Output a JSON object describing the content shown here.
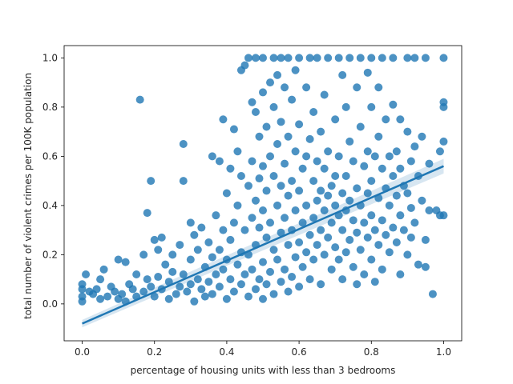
{
  "chart_data": {
    "type": "scatter",
    "xlabel": "percentage of housing units with less than 3 bedrooms",
    "ylabel": "total number of violent crimes per 100K population",
    "xlim": [
      -0.05,
      1.05
    ],
    "ylim": [
      -0.15,
      1.05
    ],
    "x_ticks": [
      0.0,
      0.2,
      0.4,
      0.6,
      0.8,
      1.0
    ],
    "x_tick_labels": [
      "0.0",
      "0.2",
      "0.4",
      "0.6",
      "0.8",
      "1.0"
    ],
    "y_ticks": [
      0.0,
      0.2,
      0.4,
      0.6,
      0.8,
      1.0
    ],
    "y_tick_labels": [
      "0.0",
      "0.2",
      "0.4",
      "0.6",
      "0.8",
      "1.0"
    ],
    "grid": false,
    "point_color": "#1f77b4",
    "regression": {
      "x": [
        0.0,
        1.0
      ],
      "y": [
        -0.08,
        0.56
      ],
      "ci_halfwidth": [
        0.015,
        0.03
      ]
    },
    "points": [
      [
        0.0,
        0.08
      ],
      [
        0.0,
        0.06
      ],
      [
        0.0,
        0.03
      ],
      [
        0.0,
        0.01
      ],
      [
        0.01,
        0.12
      ],
      [
        0.02,
        0.05
      ],
      [
        0.03,
        0.04
      ],
      [
        0.04,
        0.06
      ],
      [
        0.05,
        0.1
      ],
      [
        0.05,
        0.02
      ],
      [
        0.06,
        0.14
      ],
      [
        0.07,
        0.03
      ],
      [
        0.08,
        0.07
      ],
      [
        0.09,
        0.05
      ],
      [
        0.1,
        0.02
      ],
      [
        0.1,
        0.18
      ],
      [
        0.11,
        0.04
      ],
      [
        0.12,
        0.01
      ],
      [
        0.12,
        0.17
      ],
      [
        0.13,
        0.08
      ],
      [
        0.14,
        0.06
      ],
      [
        0.15,
        0.03
      ],
      [
        0.15,
        0.12
      ],
      [
        0.16,
        0.83
      ],
      [
        0.17,
        0.2
      ],
      [
        0.17,
        0.05
      ],
      [
        0.18,
        0.37
      ],
      [
        0.18,
        0.1
      ],
      [
        0.19,
        0.5
      ],
      [
        0.19,
        0.07
      ],
      [
        0.2,
        0.26
      ],
      [
        0.2,
        0.03
      ],
      [
        0.21,
        0.22
      ],
      [
        0.21,
        0.11
      ],
      [
        0.22,
        0.06
      ],
      [
        0.22,
        0.27
      ],
      [
        0.23,
        0.16
      ],
      [
        0.24,
        0.02
      ],
      [
        0.24,
        0.09
      ],
      [
        0.25,
        0.2
      ],
      [
        0.25,
        0.13
      ],
      [
        0.26,
        0.04
      ],
      [
        0.27,
        0.24
      ],
      [
        0.27,
        0.07
      ],
      [
        0.28,
        0.65
      ],
      [
        0.28,
        0.5
      ],
      [
        0.28,
        0.12
      ],
      [
        0.29,
        0.05
      ],
      [
        0.3,
        0.33
      ],
      [
        0.3,
        0.18
      ],
      [
        0.3,
        0.08
      ],
      [
        0.31,
        0.28
      ],
      [
        0.31,
        0.01
      ],
      [
        0.32,
        0.22
      ],
      [
        0.32,
        0.1
      ],
      [
        0.33,
        0.06
      ],
      [
        0.33,
        0.31
      ],
      [
        0.34,
        0.15
      ],
      [
        0.34,
        0.03
      ],
      [
        0.35,
        0.25
      ],
      [
        0.35,
        0.09
      ],
      [
        0.36,
        0.6
      ],
      [
        0.36,
        0.19
      ],
      [
        0.36,
        0.04
      ],
      [
        0.37,
        0.12
      ],
      [
        0.37,
        0.36
      ],
      [
        0.38,
        0.58
      ],
      [
        0.38,
        0.22
      ],
      [
        0.38,
        0.07
      ],
      [
        0.39,
        0.75
      ],
      [
        0.39,
        0.3
      ],
      [
        0.39,
        0.14
      ],
      [
        0.4,
        0.45
      ],
      [
        0.4,
        0.02
      ],
      [
        0.4,
        0.18
      ],
      [
        0.41,
        0.55
      ],
      [
        0.41,
        0.26
      ],
      [
        0.41,
        0.1
      ],
      [
        0.42,
        0.71
      ],
      [
        0.42,
        0.33
      ],
      [
        0.42,
        0.05
      ],
      [
        0.43,
        0.62
      ],
      [
        0.43,
        0.4
      ],
      [
        0.43,
        0.16
      ],
      [
        0.44,
        0.95
      ],
      [
        0.44,
        0.52
      ],
      [
        0.44,
        0.21
      ],
      [
        0.44,
        0.08
      ],
      [
        0.45,
        0.97
      ],
      [
        0.45,
        0.3
      ],
      [
        0.45,
        0.12
      ],
      [
        0.46,
        1.0
      ],
      [
        0.46,
        0.48
      ],
      [
        0.46,
        0.03
      ],
      [
        0.46,
        0.2
      ],
      [
        0.47,
        0.82
      ],
      [
        0.47,
        0.58
      ],
      [
        0.47,
        0.35
      ],
      [
        0.47,
        0.14
      ],
      [
        0.48,
        1.0
      ],
      [
        0.48,
        0.78
      ],
      [
        0.48,
        0.42
      ],
      [
        0.48,
        0.24
      ],
      [
        0.48,
        0.06
      ],
      [
        0.49,
        0.68
      ],
      [
        0.49,
        0.51
      ],
      [
        0.49,
        0.31
      ],
      [
        0.49,
        0.1
      ],
      [
        0.5,
        1.0
      ],
      [
        0.5,
        0.86
      ],
      [
        0.5,
        0.56
      ],
      [
        0.5,
        0.38
      ],
      [
        0.5,
        0.17
      ],
      [
        0.5,
        0.02
      ],
      [
        0.51,
        0.72
      ],
      [
        0.51,
        0.46
      ],
      [
        0.51,
        0.27
      ],
      [
        0.51,
        0.08
      ],
      [
        0.52,
        0.9
      ],
      [
        0.52,
        0.6
      ],
      [
        0.52,
        0.33
      ],
      [
        0.52,
        0.13
      ],
      [
        0.53,
        1.0
      ],
      [
        0.53,
        0.8
      ],
      [
        0.53,
        0.52
      ],
      [
        0.53,
        0.22
      ],
      [
        0.53,
        0.04
      ],
      [
        0.54,
        0.93
      ],
      [
        0.54,
        0.65
      ],
      [
        0.54,
        0.4
      ],
      [
        0.54,
        0.18
      ],
      [
        0.55,
        1.0
      ],
      [
        0.55,
        0.74
      ],
      [
        0.55,
        0.48
      ],
      [
        0.55,
        0.29
      ],
      [
        0.55,
        0.09
      ],
      [
        0.56,
        0.88
      ],
      [
        0.56,
        0.57
      ],
      [
        0.56,
        0.35
      ],
      [
        0.56,
        0.14
      ],
      [
        0.57,
        1.0
      ],
      [
        0.57,
        0.68
      ],
      [
        0.57,
        0.44
      ],
      [
        0.57,
        0.24
      ],
      [
        0.57,
        0.05
      ],
      [
        0.58,
        0.83
      ],
      [
        0.58,
        0.5
      ],
      [
        0.58,
        0.3
      ],
      [
        0.58,
        0.11
      ],
      [
        0.59,
        0.95
      ],
      [
        0.59,
        0.62
      ],
      [
        0.59,
        0.38
      ],
      [
        0.59,
        0.19
      ],
      [
        0.6,
        1.0
      ],
      [
        0.6,
        0.73
      ],
      [
        0.6,
        0.46
      ],
      [
        0.6,
        0.25
      ],
      [
        0.6,
        0.07
      ],
      [
        0.61,
        0.55
      ],
      [
        0.61,
        0.33
      ],
      [
        0.61,
        0.15
      ],
      [
        0.62,
        0.88
      ],
      [
        0.62,
        0.6
      ],
      [
        0.62,
        0.4
      ],
      [
        0.62,
        0.21
      ],
      [
        0.63,
        1.0
      ],
      [
        0.63,
        0.67
      ],
      [
        0.63,
        0.28
      ],
      [
        0.63,
        0.1
      ],
      [
        0.64,
        0.78
      ],
      [
        0.64,
        0.5
      ],
      [
        0.64,
        0.35
      ],
      [
        0.64,
        0.18
      ],
      [
        0.65,
        1.0
      ],
      [
        0.65,
        0.58
      ],
      [
        0.65,
        0.42
      ],
      [
        0.65,
        0.24
      ],
      [
        0.66,
        0.7
      ],
      [
        0.66,
        0.46
      ],
      [
        0.66,
        0.3
      ],
      [
        0.66,
        0.08
      ],
      [
        0.67,
        0.85
      ],
      [
        0.67,
        0.55
      ],
      [
        0.67,
        0.38
      ],
      [
        0.67,
        0.2
      ],
      [
        0.68,
        1.0
      ],
      [
        0.68,
        0.62
      ],
      [
        0.68,
        0.44
      ],
      [
        0.68,
        0.27
      ],
      [
        0.69,
        0.48
      ],
      [
        0.69,
        0.33
      ],
      [
        0.69,
        0.14
      ],
      [
        0.7,
        0.75
      ],
      [
        0.7,
        0.52
      ],
      [
        0.7,
        0.4
      ],
      [
        0.7,
        0.23
      ],
      [
        0.71,
        1.0
      ],
      [
        0.71,
        0.6
      ],
      [
        0.71,
        0.36
      ],
      [
        0.71,
        0.18
      ],
      [
        0.72,
        0.93
      ],
      [
        0.72,
        0.45
      ],
      [
        0.72,
        0.3
      ],
      [
        0.72,
        0.1
      ],
      [
        0.73,
        0.8
      ],
      [
        0.73,
        0.52
      ],
      [
        0.73,
        0.38
      ],
      [
        0.73,
        0.21
      ],
      [
        0.74,
        1.0
      ],
      [
        0.74,
        0.66
      ],
      [
        0.74,
        0.42
      ],
      [
        0.74,
        0.26
      ],
      [
        0.75,
        0.58
      ],
      [
        0.75,
        0.34
      ],
      [
        0.75,
        0.15
      ],
      [
        0.76,
        0.88
      ],
      [
        0.76,
        0.47
      ],
      [
        0.76,
        0.29
      ],
      [
        0.76,
        0.08
      ],
      [
        0.77,
        1.0
      ],
      [
        0.77,
        0.72
      ],
      [
        0.77,
        0.4
      ],
      [
        0.77,
        0.22
      ],
      [
        0.78,
        0.56
      ],
      [
        0.78,
        0.33
      ],
      [
        0.78,
        0.12
      ],
      [
        0.79,
        0.94
      ],
      [
        0.79,
        0.62
      ],
      [
        0.79,
        0.45
      ],
      [
        0.79,
        0.27
      ],
      [
        0.8,
        1.0
      ],
      [
        0.8,
        0.8
      ],
      [
        0.8,
        0.5
      ],
      [
        0.8,
        0.36
      ],
      [
        0.8,
        0.18
      ],
      [
        0.81,
        0.6
      ],
      [
        0.81,
        0.3
      ],
      [
        0.81,
        0.09
      ],
      [
        0.82,
        0.88
      ],
      [
        0.82,
        0.68
      ],
      [
        0.82,
        0.43
      ],
      [
        0.82,
        0.24
      ],
      [
        0.83,
        1.0
      ],
      [
        0.83,
        0.55
      ],
      [
        0.83,
        0.34
      ],
      [
        0.83,
        0.14
      ],
      [
        0.84,
        0.75
      ],
      [
        0.84,
        0.47
      ],
      [
        0.84,
        0.28
      ],
      [
        0.85,
        0.6
      ],
      [
        0.85,
        0.4
      ],
      [
        0.85,
        0.21
      ],
      [
        0.86,
        1.0
      ],
      [
        0.86,
        0.81
      ],
      [
        0.86,
        0.52
      ],
      [
        0.86,
        0.31
      ],
      [
        0.87,
        0.62
      ],
      [
        0.87,
        0.44
      ],
      [
        0.87,
        0.25
      ],
      [
        0.88,
        0.75
      ],
      [
        0.88,
        0.55
      ],
      [
        0.88,
        0.36
      ],
      [
        0.88,
        0.12
      ],
      [
        0.89,
        0.48
      ],
      [
        0.89,
        0.3
      ],
      [
        0.9,
        1.0
      ],
      [
        0.9,
        0.7
      ],
      [
        0.9,
        0.45
      ],
      [
        0.9,
        0.2
      ],
      [
        0.91,
        0.58
      ],
      [
        0.91,
        0.39
      ],
      [
        0.91,
        0.27
      ],
      [
        0.92,
        1.0
      ],
      [
        0.92,
        0.64
      ],
      [
        0.92,
        0.33
      ],
      [
        0.93,
        0.52
      ],
      [
        0.93,
        0.16
      ],
      [
        0.94,
        0.68
      ],
      [
        0.94,
        0.42
      ],
      [
        0.95,
        1.0
      ],
      [
        0.95,
        0.26
      ],
      [
        0.95,
        0.15
      ],
      [
        0.96,
        0.57
      ],
      [
        0.96,
        0.38
      ],
      [
        0.97,
        0.04
      ],
      [
        0.98,
        0.38
      ],
      [
        0.99,
        0.62
      ],
      [
        0.99,
        0.36
      ],
      [
        1.0,
        1.0
      ],
      [
        1.0,
        0.82
      ],
      [
        1.0,
        0.8
      ],
      [
        1.0,
        0.66
      ],
      [
        1.0,
        0.36
      ]
    ]
  }
}
